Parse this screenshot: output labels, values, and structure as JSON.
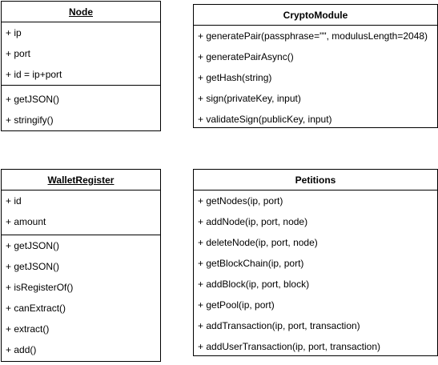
{
  "classes": [
    {
      "id": "node",
      "name": "Node",
      "underline": true,
      "attributes": [
        "+ ip",
        "+ port",
        "+ id = ip+port"
      ],
      "methods": [
        "+ getJSON()",
        "+ stringify()"
      ]
    },
    {
      "id": "crypto-module",
      "name": "CryptoModule",
      "underline": false,
      "attributes": [],
      "methods": [
        "+ generatePair(passphrase=\"\", modulusLength=2048)",
        "+ generatePairAsync()",
        "+ getHash(string)",
        "+ sign(privateKey, input)",
        "+ validateSign(publicKey, input)"
      ]
    },
    {
      "id": "wallet-register",
      "name": "WalletRegister",
      "underline": true,
      "attributes": [
        "+ id",
        "+ amount"
      ],
      "methods": [
        "+ getJSON()",
        "+ getJSON()",
        "+ isRegisterOf()",
        "+ canExtract()",
        "+ extract()",
        "+ add()"
      ]
    },
    {
      "id": "petitions",
      "name": "Petitions",
      "underline": false,
      "attributes": [],
      "methods": [
        "+ getNodes(ip, port)",
        "+ addNode(ip, port, node)",
        "+ deleteNode(ip, port, node)",
        "+ getBlockChain(ip, port)",
        "+ addBlock(ip, port, block)",
        "+ getPool(ip, port)",
        "+ addTransaction(ip, port, transaction)",
        "+ addUserTransaction(ip, port, transaction)"
      ]
    }
  ]
}
